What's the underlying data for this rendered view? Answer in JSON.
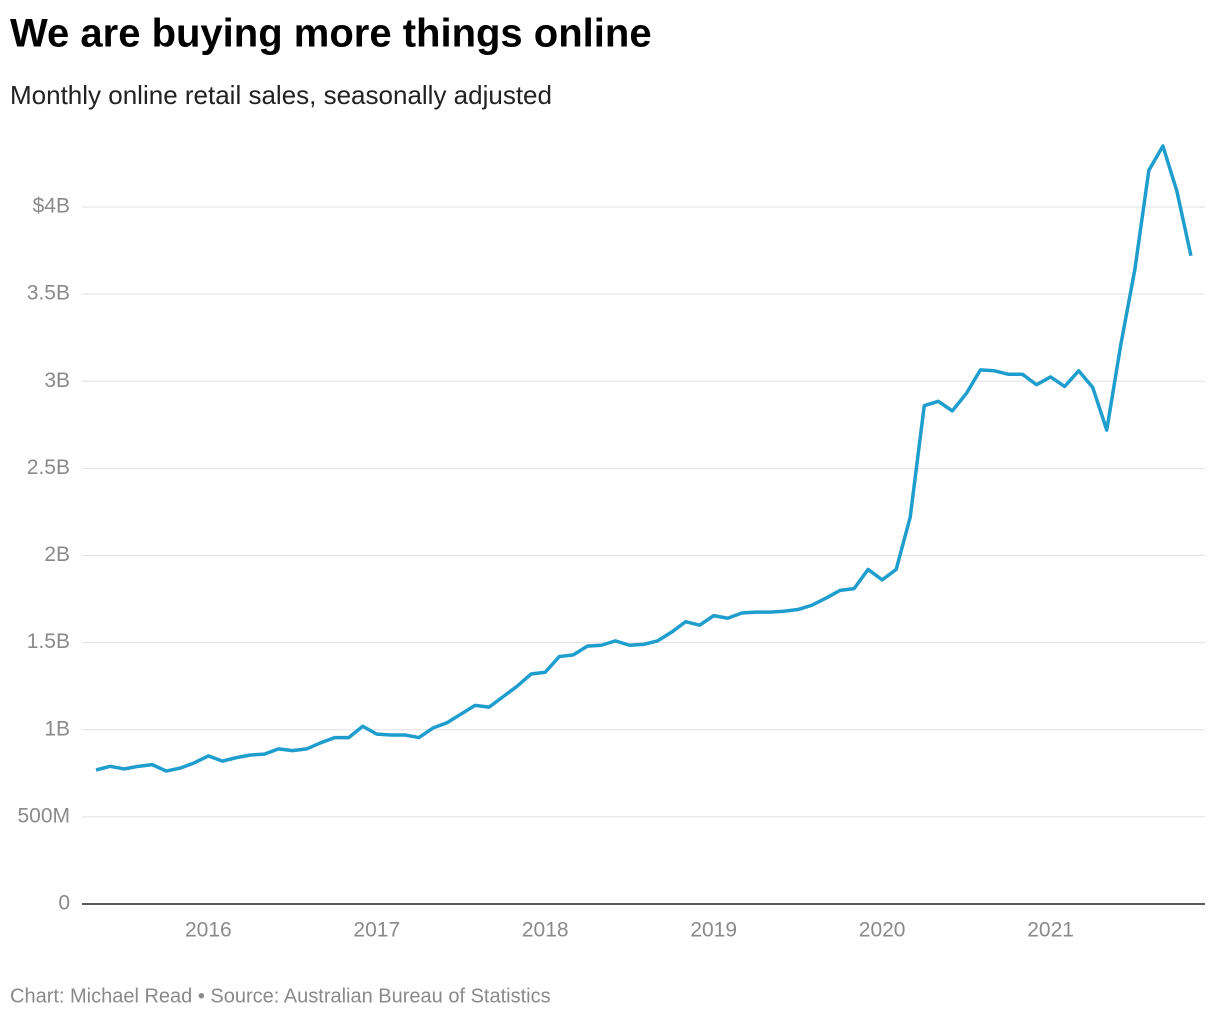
{
  "chart_data": {
    "type": "line",
    "title": "We are buying more things online",
    "subtitle": "Monthly online retail sales, seasonally adjusted",
    "source": "Chart: Michael Read • Source: Australian Bureau of Statistics",
    "x": [
      "2015-05",
      "2015-06",
      "2015-07",
      "2015-08",
      "2015-09",
      "2015-10",
      "2015-11",
      "2015-12",
      "2016-01",
      "2016-02",
      "2016-03",
      "2016-04",
      "2016-05",
      "2016-06",
      "2016-07",
      "2016-08",
      "2016-09",
      "2016-10",
      "2016-11",
      "2016-12",
      "2017-01",
      "2017-02",
      "2017-03",
      "2017-04",
      "2017-05",
      "2017-06",
      "2017-07",
      "2017-08",
      "2017-09",
      "2017-10",
      "2017-11",
      "2017-12",
      "2018-01",
      "2018-02",
      "2018-03",
      "2018-04",
      "2018-05",
      "2018-06",
      "2018-07",
      "2018-08",
      "2018-09",
      "2018-10",
      "2018-11",
      "2018-12",
      "2019-01",
      "2019-02",
      "2019-03",
      "2019-04",
      "2019-05",
      "2019-06",
      "2019-07",
      "2019-08",
      "2019-09",
      "2019-10",
      "2019-11",
      "2019-12",
      "2020-01",
      "2020-02",
      "2020-03",
      "2020-04",
      "2020-05",
      "2020-06",
      "2020-07",
      "2020-08",
      "2020-09",
      "2020-10",
      "2020-11",
      "2020-12",
      "2021-01",
      "2021-02",
      "2021-03",
      "2021-04",
      "2021-05",
      "2021-06",
      "2021-07",
      "2021-08",
      "2021-09",
      "2021-10",
      "2021-11"
    ],
    "series": [
      {
        "name": "Online retail sales",
        "color": "#1f9ece",
        "values": [
          769000000,
          790000000,
          775000000,
          790000000,
          800000000,
          763000000,
          780000000,
          810000000,
          850000000,
          820000000,
          840000000,
          855000000,
          860000000,
          890000000,
          880000000,
          890000000,
          925000000,
          955000000,
          955000000,
          1020000000,
          975000000,
          970000000,
          970000000,
          955000000,
          1010000000,
          1040000000,
          1090000000,
          1140000000,
          1130000000,
          1190000000,
          1250000000,
          1320000000,
          1330000000,
          1420000000,
          1430000000,
          1480000000,
          1485000000,
          1510000000,
          1485000000,
          1490000000,
          1510000000,
          1560000000,
          1620000000,
          1600000000,
          1655000000,
          1640000000,
          1670000000,
          1675000000,
          1675000000,
          1680000000,
          1690000000,
          1715000000,
          1755000000,
          1800000000,
          1810000000,
          1920000000,
          1860000000,
          1920000000,
          2220000000,
          2860000000,
          2885000000,
          2830000000,
          2930000000,
          3065000000,
          3060000000,
          3040000000,
          3040000000,
          2980000000,
          3025000000,
          2970000000,
          3060000000,
          2965000000,
          2720000000,
          3210000000,
          3640000000,
          4210000000,
          4350000000,
          4090000000,
          3720000000
        ]
      }
    ],
    "xlim": [
      "2015-04",
      "2021-12"
    ],
    "xticks": [
      "2016",
      "2017",
      "2018",
      "2019",
      "2020",
      "2021"
    ],
    "ylim": [
      0,
      4450000000
    ],
    "yticks": [
      {
        "value": 0,
        "label": "0"
      },
      {
        "value": 500000000,
        "label": "500M"
      },
      {
        "value": 1000000000,
        "label": "1B"
      },
      {
        "value": 1500000000,
        "label": "1.5B"
      },
      {
        "value": 2000000000,
        "label": "2B"
      },
      {
        "value": 2500000000,
        "label": "2.5B"
      },
      {
        "value": 3000000000,
        "label": "3B"
      },
      {
        "value": 3500000000,
        "label": "3.5B"
      },
      {
        "value": 4000000000,
        "label": "$4B"
      }
    ],
    "grid": true
  }
}
